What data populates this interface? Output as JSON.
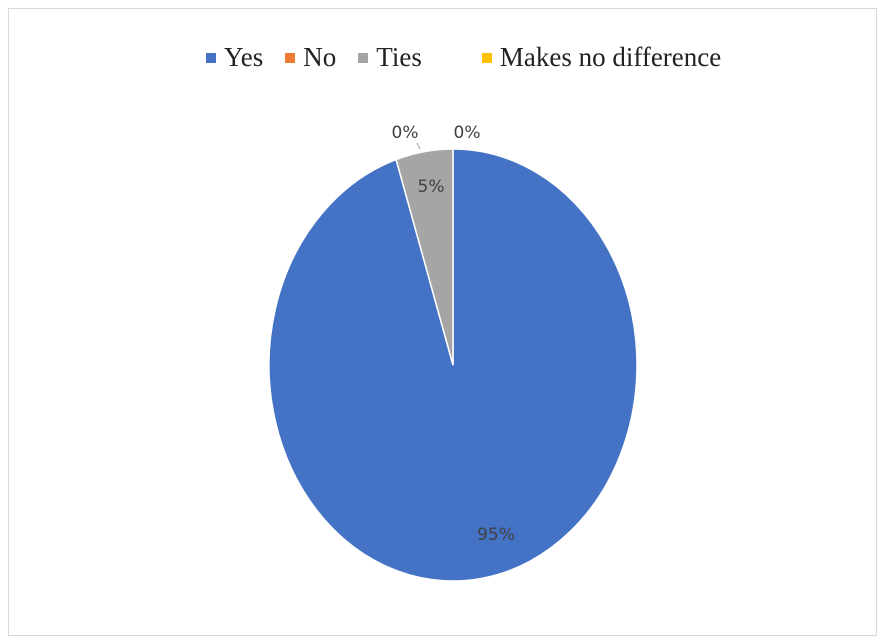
{
  "chart_data": {
    "type": "pie",
    "categories": [
      "Yes",
      "No",
      "Ties",
      "Makes no difference"
    ],
    "values": [
      95,
      0,
      5,
      0
    ],
    "data_labels": [
      "95%",
      "0%",
      "5%",
      "0%"
    ],
    "colors": [
      "#4472C4",
      "#ED7D31",
      "#A5A5A5",
      "#FFC000"
    ],
    "legend": {
      "placement": "top",
      "entries": [
        "Yes",
        "No",
        "Ties",
        "Makes no difference"
      ]
    },
    "start_angle": "12 o'clock",
    "direction": "clockwise"
  }
}
